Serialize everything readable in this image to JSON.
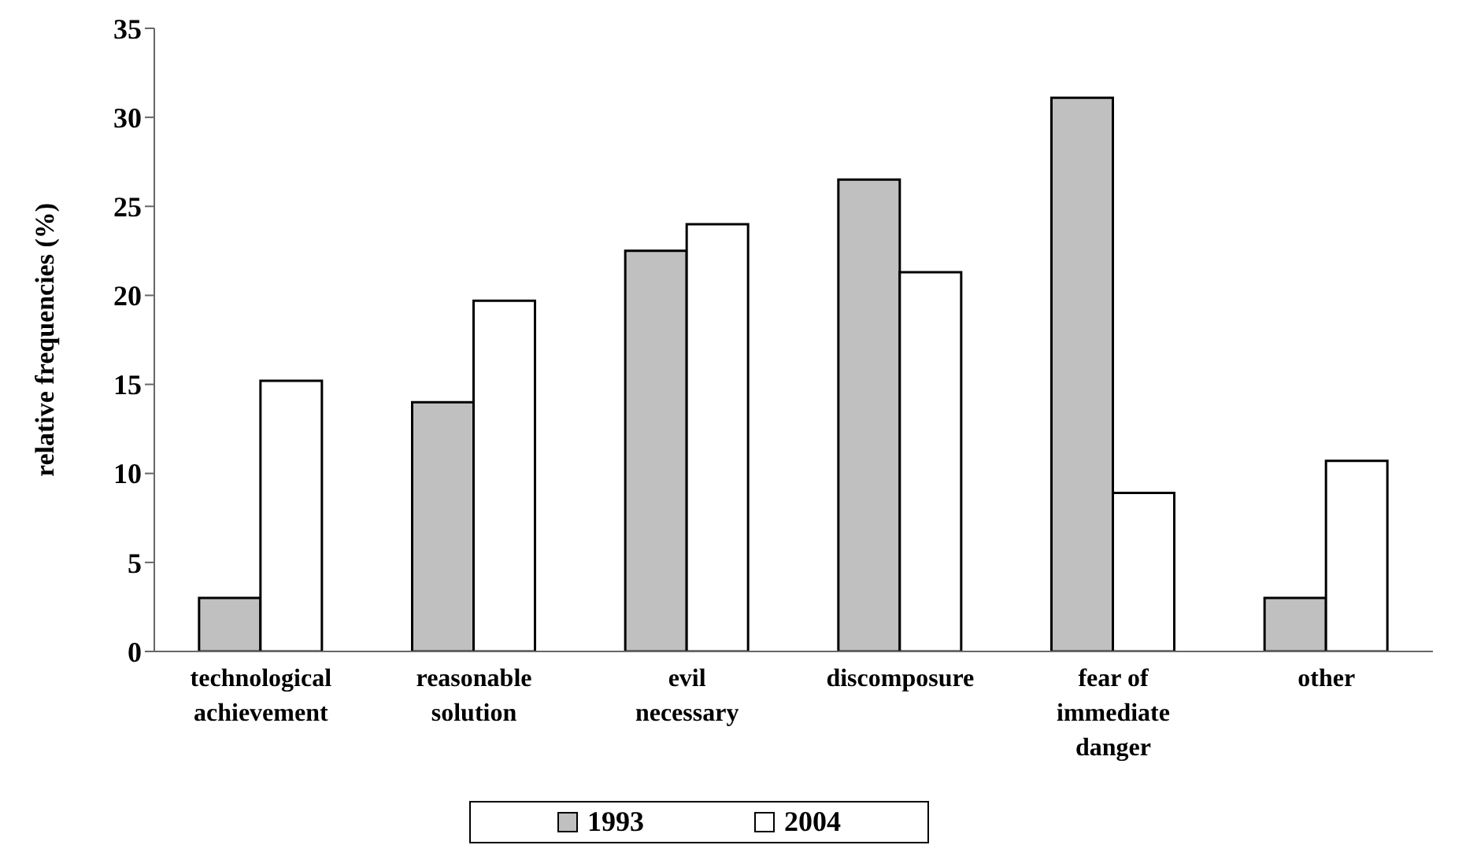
{
  "chart_data": {
    "type": "bar",
    "ylabel": "relative frequencies (%)",
    "categories": [
      "technological achievement",
      "reasonable solution",
      "evil necessary",
      "discomposure",
      "fear of immediate danger",
      "other"
    ],
    "series": [
      {
        "name": "1993",
        "color": "#c0c0c0",
        "values": [
          3.0,
          14.0,
          22.5,
          26.5,
          31.1,
          3.0
        ]
      },
      {
        "name": "2004",
        "color": "#ffffff",
        "values": [
          15.2,
          19.7,
          24.0,
          21.3,
          8.9,
          10.7
        ]
      }
    ],
    "ylim": [
      0,
      35
    ],
    "yticks": [
      0,
      5,
      10,
      15,
      20,
      25,
      30,
      35
    ],
    "grid": false,
    "legend": "bottom"
  }
}
